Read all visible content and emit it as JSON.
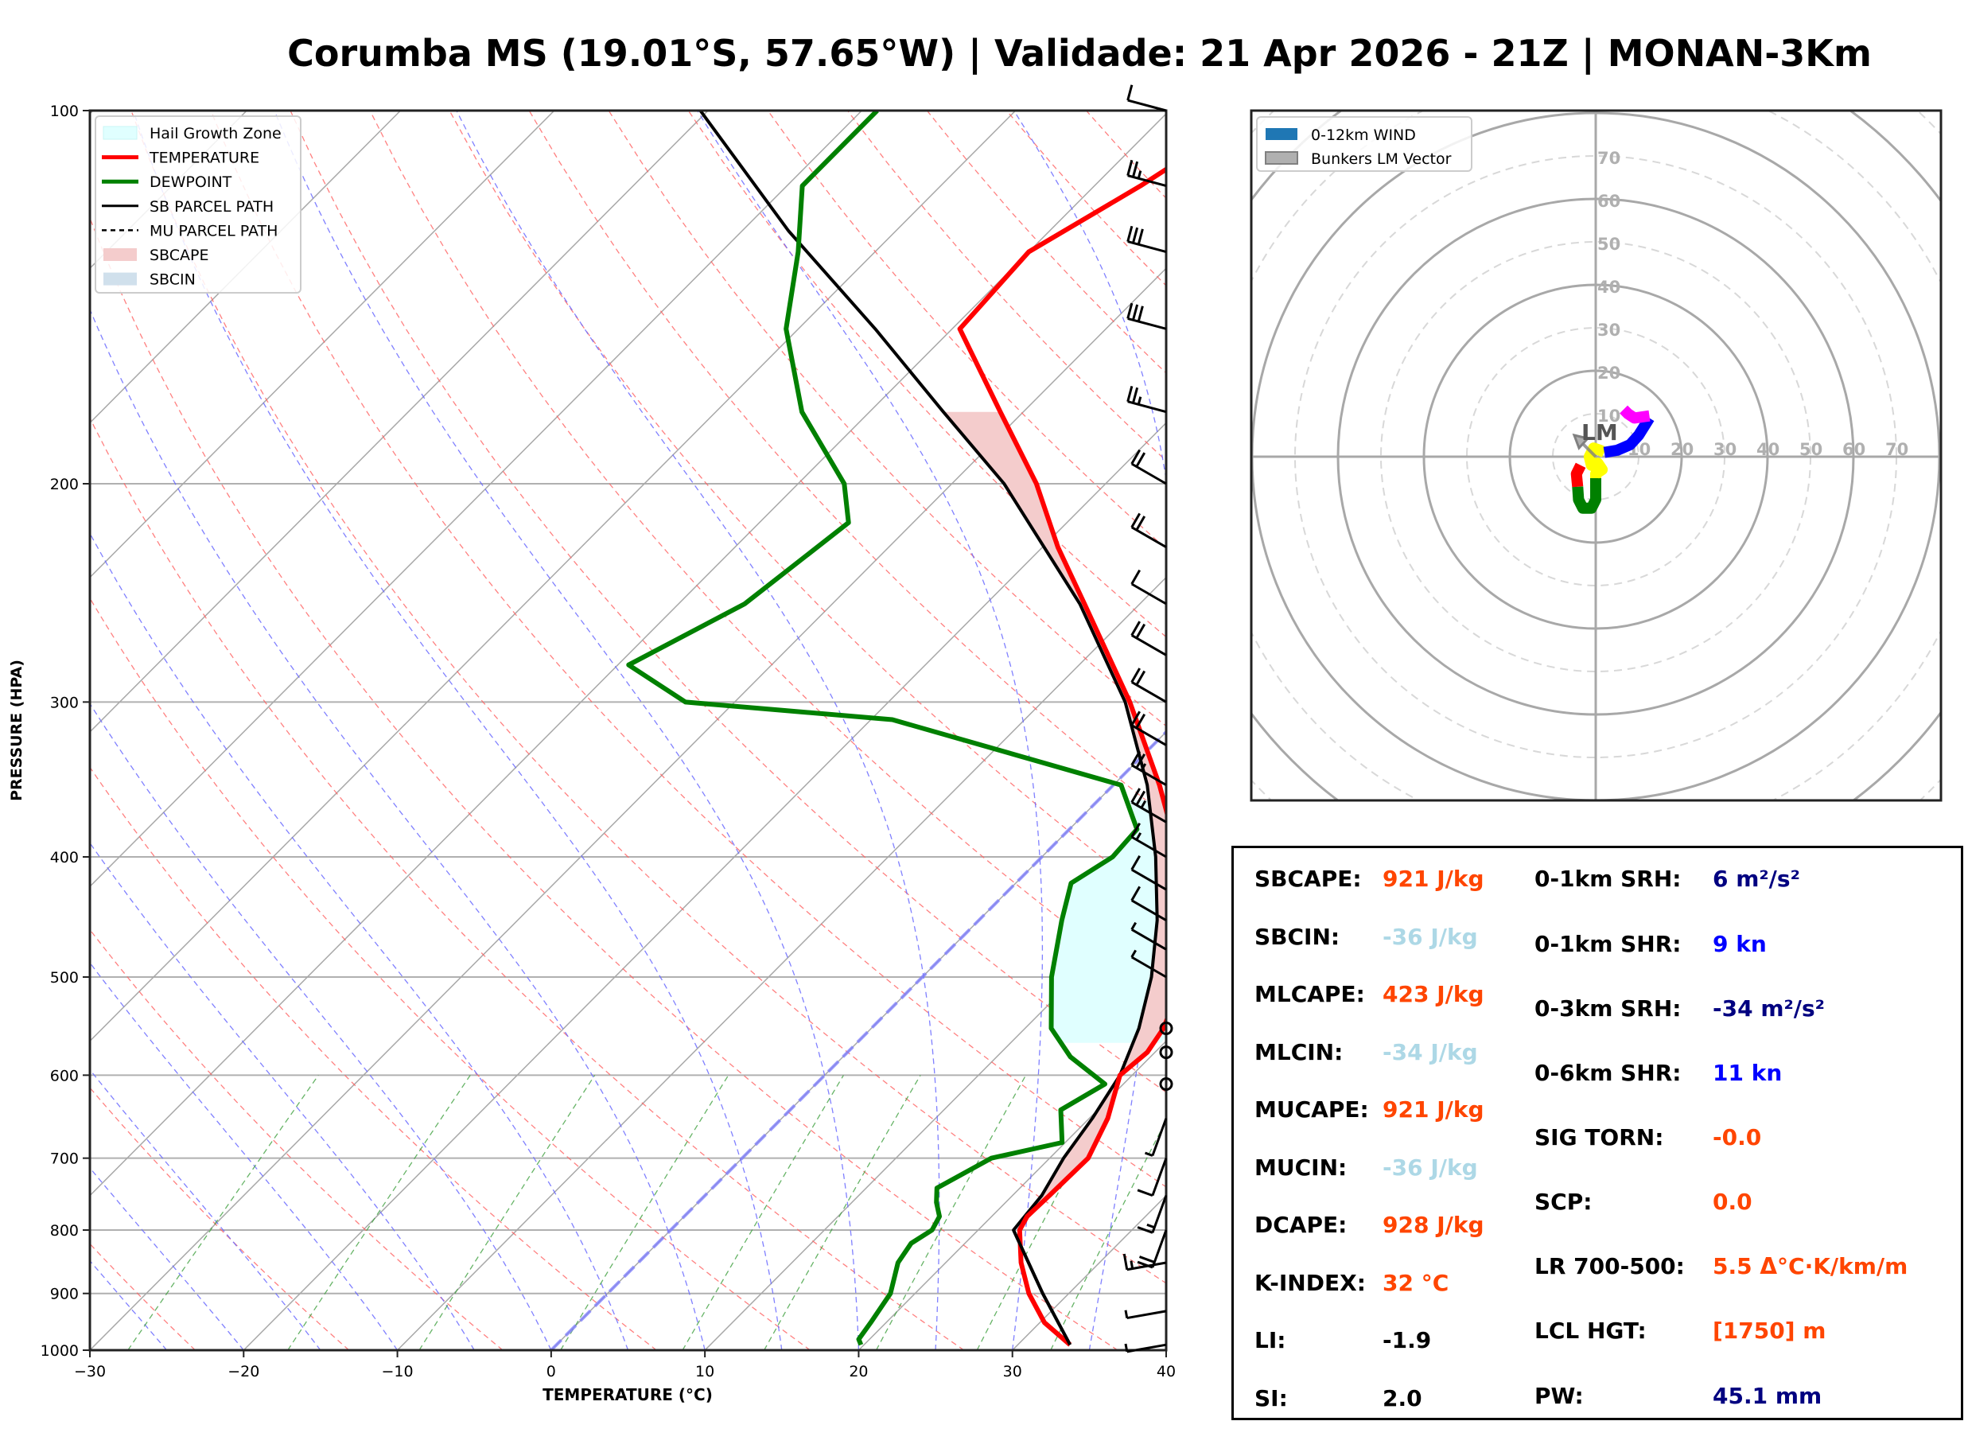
{
  "title": "Corumba MS (19.01°S, 57.65°W) | Validade: 21 Apr 2026 - 21Z | MONAN-3Km",
  "colors": {
    "temperature": "#ff0000",
    "dewpoint": "#008000",
    "parcel": "#000000",
    "sbcape_fill": "#f4cccc",
    "sbcin_fill": "#c6dbe9",
    "hail_zone": "#e0ffff",
    "orange_value": "#ff4500",
    "lightblue_value": "#add8e6",
    "navy_value": "#000080",
    "blue_value": "#0000ff"
  },
  "chart_data": [
    {
      "type": "line",
      "name": "skew-t",
      "xlabel": "TEMPERATURE (°C)",
      "ylabel": "PRESSURE (HPA)",
      "xlim": [
        -30,
        40
      ],
      "ylim": [
        1000,
        100
      ],
      "x_ticks": [
        "−30",
        "−20",
        "−10",
        "0",
        "10",
        "20",
        "30",
        "40"
      ],
      "x_tick_values": [
        -30,
        -20,
        -10,
        0,
        10,
        20,
        30,
        40
      ],
      "y_ticks": [
        100,
        200,
        300,
        400,
        500,
        600,
        700,
        800,
        900,
        1000
      ],
      "legend": {
        "placement": "top-left",
        "entries": [
          "Hail Growth Zone",
          "TEMPERATURE",
          "DEWPOINT",
          "SB PARCEL PATH",
          "MU PARCEL PATH",
          "SBCAPE",
          "SBCIN"
        ]
      },
      "series": [
        {
          "name": "TEMPERATURE",
          "points": [
            [
              990,
              33.4
            ],
            [
              950,
              30.3
            ],
            [
              900,
              27.4
            ],
            [
              850,
              24.9
            ],
            [
              800,
              22.7
            ],
            [
              780,
              22.3
            ],
            [
              750,
              22.4
            ],
            [
              700,
              22.5
            ],
            [
              650,
              21.2
            ],
            [
              600,
              19.2
            ],
            [
              575,
              19.5
            ],
            [
              550,
              19.0
            ],
            [
              500,
              17.0
            ],
            [
              450,
              13.3
            ],
            [
              400,
              8.9
            ],
            [
              350,
              3.0
            ],
            [
              300,
              -4.3
            ],
            [
              250,
              -13.6
            ],
            [
              225,
              -19.0
            ],
            [
              200,
              -24.5
            ],
            [
              175,
              -31.5
            ],
            [
              150,
              -39.5
            ],
            [
              130,
              -40.0
            ],
            [
              115,
              -37.0
            ],
            [
              100,
              -34.3
            ]
          ]
        },
        {
          "name": "DEWPOINT",
          "points": [
            [
              990,
              19.8
            ],
            [
              980,
              19.3
            ],
            [
              950,
              19.0
            ],
            [
              900,
              18.4
            ],
            [
              850,
              16.9
            ],
            [
              820,
              16.5
            ],
            [
              800,
              17.0
            ],
            [
              780,
              16.6
            ],
            [
              760,
              15.5
            ],
            [
              740,
              14.6
            ],
            [
              700,
              16.2
            ],
            [
              680,
              19.8
            ],
            [
              640,
              17.6
            ],
            [
              610,
              18.8
            ],
            [
              580,
              14.8
            ],
            [
              550,
              11.7
            ],
            [
              500,
              8.4
            ],
            [
              450,
              5.4
            ],
            [
              420,
              3.6
            ],
            [
              400,
              4.6
            ],
            [
              380,
              4.4
            ],
            [
              350,
              0.5
            ],
            [
              310,
              -18.6
            ],
            [
              300,
              -33.2
            ],
            [
              280,
              -39.3
            ],
            [
              250,
              -35.7
            ],
            [
              215,
              -34.2
            ],
            [
              200,
              -37.0
            ],
            [
              175,
              -44.4
            ],
            [
              150,
              -50.8
            ],
            [
              130,
              -55.0
            ],
            [
              115,
              -59.0
            ],
            [
              100,
              -59.0
            ]
          ]
        },
        {
          "name": "SB PARCEL PATH",
          "points": [
            [
              990,
              33.4
            ],
            [
              900,
              28.3
            ],
            [
              800,
              22.3
            ],
            [
              750,
              21.9
            ],
            [
              700,
              20.9
            ],
            [
              650,
              20.2
            ],
            [
              600,
              19.2
            ],
            [
              550,
              17.4
            ],
            [
              500,
              14.9
            ],
            [
              450,
              11.6
            ],
            [
              400,
              7.4
            ],
            [
              350,
              2.2
            ],
            [
              300,
              -4.6
            ],
            [
              250,
              -13.9
            ],
            [
              200,
              -26.6
            ],
            [
              175,
              -35.2
            ],
            [
              150,
              -45.0
            ],
            [
              125,
              -57.0
            ],
            [
              100,
              -70.5
            ]
          ]
        }
      ],
      "fills": {
        "SBCAPE": "between TEMPERATURE and SB PARCEL PATH, 760–175 hPa",
        "SBCIN": "between TEMPERATURE and SB PARCEL PATH, 800–760 hPa",
        "Hail Growth Zone": "-10 to -30 °C layer, ~360–565 hPa"
      },
      "wind_barbs": [
        {
          "p": 100,
          "kt": 10
        },
        {
          "p": 115,
          "kt": 25
        },
        {
          "p": 130,
          "kt": 30
        },
        {
          "p": 150,
          "kt": 30
        },
        {
          "p": 175,
          "kt": 25
        },
        {
          "p": 200,
          "kt": 20
        },
        {
          "p": 225,
          "kt": 20
        },
        {
          "p": 250,
          "kt": 10
        },
        {
          "p": 275,
          "kt": 20
        },
        {
          "p": 300,
          "kt": 20
        },
        {
          "p": 325,
          "kt": 20
        },
        {
          "p": 350,
          "kt": 25
        },
        {
          "p": 375,
          "kt": 25
        },
        {
          "p": 400,
          "kt": 15
        },
        {
          "p": 425,
          "kt": 10
        },
        {
          "p": 450,
          "kt": 10
        },
        {
          "p": 475,
          "kt": 5
        },
        {
          "p": 500,
          "kt": 5
        },
        {
          "p": 550,
          "kt": 0
        },
        {
          "p": 575,
          "kt": 0
        },
        {
          "p": 610,
          "kt": 0
        },
        {
          "p": 650,
          "kt": 5
        },
        {
          "p": 700,
          "kt": 10
        },
        {
          "p": 750,
          "kt": 15
        },
        {
          "p": 800,
          "kt": 20
        },
        {
          "p": 850,
          "kt": 15
        },
        {
          "p": 930,
          "kt": 5
        },
        {
          "p": 990,
          "kt": 5
        }
      ]
    },
    {
      "type": "line",
      "name": "hodograph",
      "ring_labels": [
        10,
        20,
        30,
        40,
        50,
        60,
        70
      ],
      "units": "kt",
      "legend": {
        "placement": "top-left",
        "entries": [
          "0-12km WIND",
          "Bunkers LM Vector"
        ]
      },
      "bunkers_lm": {
        "u": -5,
        "v": 5,
        "label": "LM"
      },
      "segments": [
        {
          "color": "#ff0000",
          "points": [
            [
              -3.5,
              -2
            ],
            [
              -4.5,
              -4
            ],
            [
              -4.2,
              -7
            ]
          ]
        },
        {
          "color": "#008000",
          "points": [
            [
              -4.2,
              -7
            ],
            [
              -4,
              -10
            ],
            [
              -3,
              -12
            ],
            [
              -1,
              -12
            ],
            [
              0,
              -10
            ],
            [
              0,
              -5
            ]
          ]
        },
        {
          "color": "#ffff00",
          "points": [
            [
              0,
              -5
            ],
            [
              0,
              -4
            ],
            [
              1.5,
              -3
            ],
            [
              0.5,
              -1.5
            ],
            [
              -1,
              -2
            ],
            [
              -1.5,
              0
            ],
            [
              -0.5,
              2
            ],
            [
              1,
              1.5
            ],
            [
              2,
              1
            ]
          ]
        },
        {
          "color": "#0000ff",
          "points": [
            [
              2,
              1
            ],
            [
              5,
              1.5
            ],
            [
              8,
              2.8
            ],
            [
              10,
              5
            ],
            [
              12.5,
              9
            ]
          ]
        },
        {
          "color": "#ff00ff",
          "points": [
            [
              12.5,
              9.5
            ],
            [
              9,
              9
            ],
            [
              7.5,
              10
            ],
            [
              6.5,
              11
            ]
          ]
        }
      ]
    }
  ],
  "params": {
    "left": [
      {
        "label": "SBCAPE:",
        "value": "921 J/kg",
        "color": "#ff4500"
      },
      {
        "label": "SBCIN:",
        "value": "-36 J/kg",
        "color": "#add8e6"
      },
      {
        "label": "MLCAPE:",
        "value": "423 J/kg",
        "color": "#ff4500"
      },
      {
        "label": "MLCIN:",
        "value": "-34 J/kg",
        "color": "#add8e6"
      },
      {
        "label": "MUCAPE:",
        "value": "921 J/kg",
        "color": "#ff4500"
      },
      {
        "label": "MUCIN:",
        "value": "-36 J/kg",
        "color": "#add8e6"
      },
      {
        "label": "DCAPE:",
        "value": "928 J/kg",
        "color": "#ff4500"
      },
      {
        "label": "K-INDEX:",
        "value": "32 °C",
        "color": "#ff4500"
      },
      {
        "label": "LI:",
        "value": "-1.9",
        "color": "#000000"
      },
      {
        "label": "SI:",
        "value": "2.0",
        "color": "#000000"
      }
    ],
    "right": [
      {
        "label": "0-1km SRH:",
        "value": "6 m²/s²",
        "color": "#000080"
      },
      {
        "label": "0-1km SHR:",
        "value": "9 kn",
        "color": "#0000ff"
      },
      {
        "label": "0-3km SRH:",
        "value": "-34 m²/s²",
        "color": "#000080"
      },
      {
        "label": "0-6km SHR:",
        "value": "11 kn",
        "color": "#0000ff"
      },
      {
        "label": "SIG TORN:",
        "value": "-0.0",
        "color": "#ff4500"
      },
      {
        "label": "SCP:",
        "value": "0.0",
        "color": "#ff4500"
      },
      {
        "label": "LR 700-500:",
        "value": "5.5 Δ°C·K/km/m",
        "color": "#ff4500"
      },
      {
        "label": "LCL HGT:",
        "value": "[1750] m",
        "color": "#ff4500"
      },
      {
        "label": "PW:",
        "value": "45.1 mm",
        "color": "#000080"
      }
    ]
  }
}
